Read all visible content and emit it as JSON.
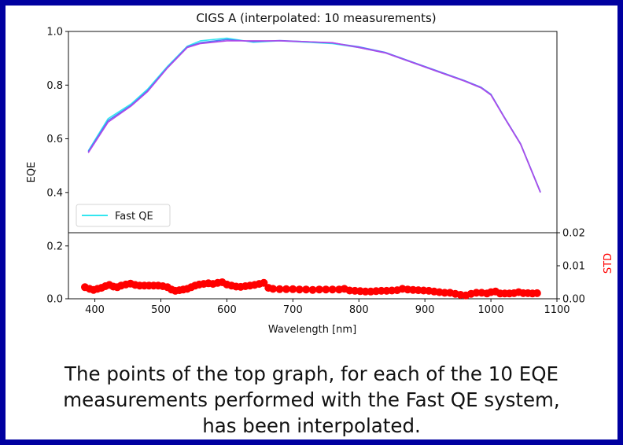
{
  "chart_data": {
    "type": "line",
    "title": "CIGS A (interpolated: 10 measurements)",
    "xlabel": "Wavelength [nm]",
    "ylabel": "EQE",
    "ylabel_right": "STD",
    "xlim": [
      360,
      1100
    ],
    "x_ticks": [
      "400",
      "500",
      "600",
      "700",
      "800",
      "900",
      "1000",
      "1100"
    ],
    "top_panel": {
      "ylim": [
        0.25,
        1.0
      ],
      "y_ticks": [
        "1.0",
        "0.8",
        "0.6",
        "0.4"
      ],
      "legend": {
        "label": "Fast QE",
        "color": "#33e6f0",
        "placement": "lower-left"
      },
      "series": [
        {
          "name": "Fast QE",
          "color": "#33e6f0",
          "x": [
            390,
            420,
            455,
            480,
            510,
            540,
            560,
            600,
            640,
            680,
            720,
            760,
            800,
            840,
            880,
            920,
            960,
            985,
            1000,
            1020,
            1045,
            1075
          ],
          "y": [
            0.555,
            0.675,
            0.73,
            0.785,
            0.87,
            0.945,
            0.965,
            0.975,
            0.96,
            0.965,
            0.96,
            0.955,
            0.94,
            0.92,
            0.885,
            0.85,
            0.815,
            0.79,
            0.765,
            0.68,
            0.58,
            0.4
          ]
        },
        {
          "color": "#4a7ff5",
          "x": [
            390,
            420,
            455,
            480,
            510,
            540,
            560,
            600,
            640,
            680,
            720,
            760,
            800,
            840,
            880,
            920,
            960,
            985,
            1000,
            1020,
            1045,
            1075
          ],
          "y": [
            0.552,
            0.668,
            0.725,
            0.78,
            0.866,
            0.943,
            0.958,
            0.97,
            0.962,
            0.966,
            0.962,
            0.957,
            0.943,
            0.922,
            0.887,
            0.852,
            0.817,
            0.792,
            0.766,
            0.682,
            0.582,
            0.402
          ]
        },
        {
          "color": "#b347e8",
          "x": [
            390,
            420,
            455,
            480,
            510,
            540,
            560,
            600,
            640,
            680,
            720,
            760,
            800,
            840,
            880,
            920,
            960,
            985,
            1000,
            1020,
            1045,
            1075
          ],
          "y": [
            0.548,
            0.662,
            0.722,
            0.776,
            0.864,
            0.94,
            0.955,
            0.965,
            0.965,
            0.965,
            0.962,
            0.958,
            0.94,
            0.92,
            0.885,
            0.85,
            0.815,
            0.79,
            0.763,
            0.68,
            0.58,
            0.4
          ]
        }
      ]
    },
    "bottom_panel": {
      "ylim_left": [
        0,
        0.25
      ],
      "y_ticks_left": [
        "0.2",
        "0.0"
      ],
      "ylim_right": [
        0,
        0.02
      ],
      "y_ticks_right": [
        "0.02",
        "0.01",
        "0.00"
      ],
      "std_color": "#ff0000",
      "std_points": [
        [
          385,
          0.0035
        ],
        [
          392,
          0.003
        ],
        [
          398,
          0.0027
        ],
        [
          404,
          0.003
        ],
        [
          410,
          0.0033
        ],
        [
          416,
          0.0038
        ],
        [
          422,
          0.0042
        ],
        [
          428,
          0.0037
        ],
        [
          434,
          0.0035
        ],
        [
          440,
          0.004
        ],
        [
          447,
          0.0043
        ],
        [
          454,
          0.0046
        ],
        [
          461,
          0.0042
        ],
        [
          468,
          0.004
        ],
        [
          475,
          0.004
        ],
        [
          482,
          0.004
        ],
        [
          489,
          0.004
        ],
        [
          496,
          0.004
        ],
        [
          503,
          0.0038
        ],
        [
          510,
          0.0035
        ],
        [
          516,
          0.0028
        ],
        [
          522,
          0.0024
        ],
        [
          528,
          0.0026
        ],
        [
          534,
          0.0028
        ],
        [
          540,
          0.003
        ],
        [
          546,
          0.0035
        ],
        [
          552,
          0.004
        ],
        [
          558,
          0.0043
        ],
        [
          565,
          0.0045
        ],
        [
          572,
          0.0047
        ],
        [
          579,
          0.0045
        ],
        [
          586,
          0.0048
        ],
        [
          593,
          0.005
        ],
        [
          600,
          0.0043
        ],
        [
          607,
          0.004
        ],
        [
          614,
          0.0037
        ],
        [
          621,
          0.0036
        ],
        [
          628,
          0.0038
        ],
        [
          635,
          0.004
        ],
        [
          642,
          0.0042
        ],
        [
          649,
          0.0045
        ],
        [
          656,
          0.0048
        ],
        [
          663,
          0.0033
        ],
        [
          670,
          0.003
        ],
        [
          680,
          0.0029
        ],
        [
          690,
          0.0029
        ],
        [
          700,
          0.0029
        ],
        [
          710,
          0.0028
        ],
        [
          720,
          0.0028
        ],
        [
          730,
          0.0027
        ],
        [
          740,
          0.0028
        ],
        [
          750,
          0.0028
        ],
        [
          760,
          0.0028
        ],
        [
          770,
          0.0028
        ],
        [
          778,
          0.003
        ],
        [
          786,
          0.0025
        ],
        [
          794,
          0.0024
        ],
        [
          802,
          0.0023
        ],
        [
          810,
          0.0022
        ],
        [
          818,
          0.0022
        ],
        [
          826,
          0.0023
        ],
        [
          834,
          0.0024
        ],
        [
          842,
          0.0024
        ],
        [
          850,
          0.0025
        ],
        [
          858,
          0.0026
        ],
        [
          866,
          0.003
        ],
        [
          874,
          0.0028
        ],
        [
          882,
          0.0027
        ],
        [
          890,
          0.0026
        ],
        [
          898,
          0.0025
        ],
        [
          906,
          0.0024
        ],
        [
          914,
          0.0022
        ],
        [
          922,
          0.002
        ],
        [
          930,
          0.0018
        ],
        [
          938,
          0.0018
        ],
        [
          946,
          0.0015
        ],
        [
          954,
          0.0012
        ],
        [
          962,
          0.001
        ],
        [
          970,
          0.0015
        ],
        [
          978,
          0.0018
        ],
        [
          986,
          0.0018
        ],
        [
          994,
          0.0016
        ],
        [
          1000,
          0.002
        ],
        [
          1007,
          0.0022
        ],
        [
          1014,
          0.0016
        ],
        [
          1021,
          0.0016
        ],
        [
          1028,
          0.0016
        ],
        [
          1035,
          0.0017
        ],
        [
          1042,
          0.002
        ],
        [
          1049,
          0.0017
        ],
        [
          1056,
          0.0017
        ],
        [
          1063,
          0.0016
        ],
        [
          1070,
          0.0017
        ]
      ]
    }
  },
  "caption": {
    "line1": "The points of the top graph, for each of the 10 EQE",
    "line2": "measurements performed with the Fast QE system,",
    "line3": "has been interpolated."
  }
}
